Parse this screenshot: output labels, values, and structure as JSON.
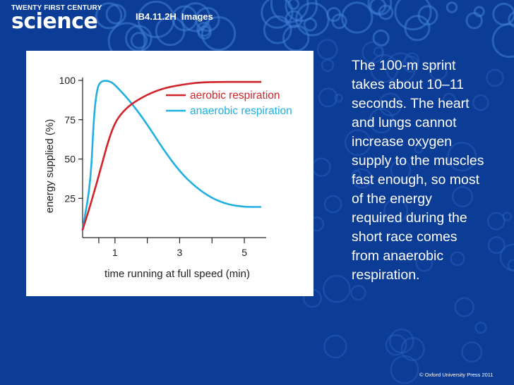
{
  "slide": {
    "logo_top": "TWENTY FIRST CENTURY",
    "logo_main": "science",
    "code": "IB4.11.2H  Images",
    "side_text": "The 100-m sprint takes about 10–11 seconds. The heart and lungs cannot increase oxygen supply to the muscles fast enough, so most of the energy required during the short race comes from anaerobic respiration.",
    "copyright": "© Oxford University Press 2011",
    "colors": {
      "background": "#0b3c96",
      "aerobic": "#d2232a",
      "anaerobic": "#1fb0e0"
    }
  },
  "chart_data": {
    "type": "line",
    "title": "",
    "xlabel": "time running at full speed (min)",
    "ylabel": "energy supplied (%)",
    "xlim": [
      0,
      5.5
    ],
    "ylim": [
      0,
      100
    ],
    "x_ticks": [
      1,
      3,
      5
    ],
    "x_minor_ticks": [
      0.5,
      1,
      2,
      3,
      4,
      5
    ],
    "y_ticks": [
      25,
      50,
      75,
      100
    ],
    "grid": false,
    "legend_position": "top-right",
    "series": [
      {
        "name": "aerobic respiration",
        "color": "#d2232a",
        "points": [
          [
            0,
            5
          ],
          [
            0.2,
            18
          ],
          [
            0.4,
            32
          ],
          [
            0.6,
            47
          ],
          [
            0.8,
            62
          ],
          [
            1.0,
            73
          ],
          [
            1.2,
            79
          ],
          [
            1.5,
            85
          ],
          [
            2.0,
            91
          ],
          [
            2.5,
            95
          ],
          [
            3.0,
            97
          ],
          [
            3.5,
            98.5
          ],
          [
            4.0,
            99
          ],
          [
            5.0,
            99
          ],
          [
            5.5,
            99
          ]
        ]
      },
      {
        "name": "anaerobic respiration",
        "color": "#1fb0e0",
        "points": [
          [
            0,
            5
          ],
          [
            0.25,
            35
          ],
          [
            0.35,
            78
          ],
          [
            0.45,
            95
          ],
          [
            0.55,
            99
          ],
          [
            0.7,
            100
          ],
          [
            0.9,
            99
          ],
          [
            1.1,
            95
          ],
          [
            1.5,
            86
          ],
          [
            2.0,
            72
          ],
          [
            2.5,
            56
          ],
          [
            3.0,
            42
          ],
          [
            3.5,
            32
          ],
          [
            4.0,
            25
          ],
          [
            4.5,
            21
          ],
          [
            5.0,
            19.5
          ],
          [
            5.5,
            19.5
          ]
        ]
      }
    ]
  }
}
